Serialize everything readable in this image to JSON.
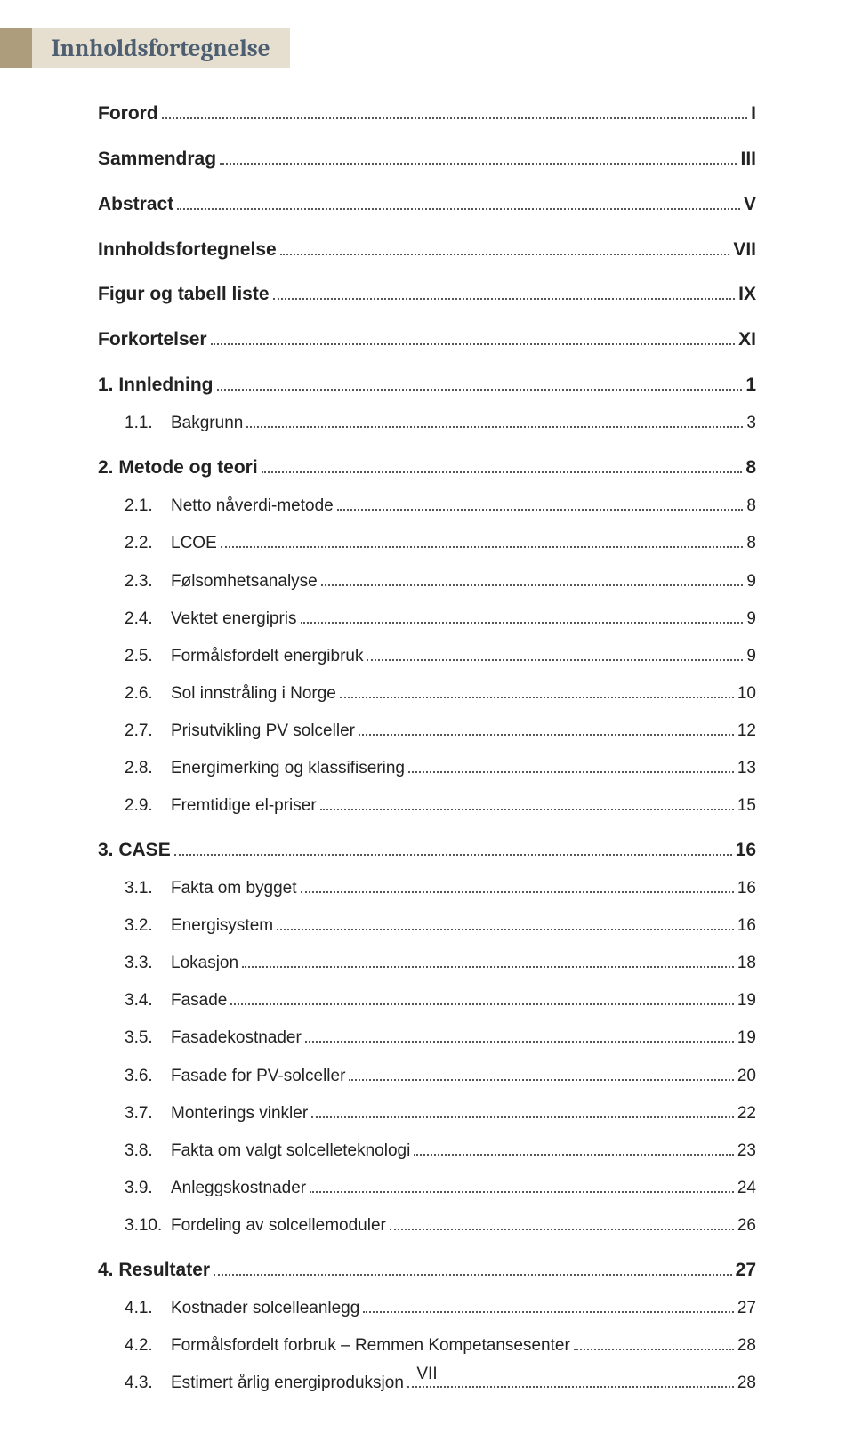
{
  "header": {
    "title": "Innholdsfortegnelse"
  },
  "footer": {
    "page": "VII"
  },
  "toc": [
    {
      "level": 0,
      "num": "",
      "title": "Forord",
      "page": "I"
    },
    {
      "level": 0,
      "num": "",
      "title": "Sammendrag",
      "page": "III"
    },
    {
      "level": 0,
      "num": "",
      "title": "Abstract",
      "page": "V"
    },
    {
      "level": 0,
      "num": "",
      "title": "Innholdsfortegnelse",
      "page": "VII"
    },
    {
      "level": 0,
      "num": "",
      "title": "Figur og tabell liste",
      "page": "IX"
    },
    {
      "level": 0,
      "num": "",
      "title": "Forkortelser",
      "page": "XI"
    },
    {
      "level": 0,
      "num": "1.",
      "title": "Innledning",
      "page": "1"
    },
    {
      "level": 1,
      "num": "1.1.",
      "title": "Bakgrunn",
      "page": "3"
    },
    {
      "level": 0,
      "num": "2.",
      "title": "Metode og teori",
      "page": "8"
    },
    {
      "level": 1,
      "num": "2.1.",
      "title": "Netto nåverdi-metode",
      "page": "8"
    },
    {
      "level": 1,
      "num": "2.2.",
      "title": "LCOE",
      "page": "8"
    },
    {
      "level": 1,
      "num": "2.3.",
      "title": "Følsomhetsanalyse",
      "page": "9"
    },
    {
      "level": 1,
      "num": "2.4.",
      "title": "Vektet energipris",
      "page": "9"
    },
    {
      "level": 1,
      "num": "2.5.",
      "title": "Formålsfordelt energibruk",
      "page": "9"
    },
    {
      "level": 1,
      "num": "2.6.",
      "title": "Sol innstråling i Norge",
      "page": "10"
    },
    {
      "level": 1,
      "num": "2.7.",
      "title": "Prisutvikling PV solceller",
      "page": "12"
    },
    {
      "level": 1,
      "num": "2.8.",
      "title": "Energimerking og klassifisering",
      "page": "13"
    },
    {
      "level": 1,
      "num": "2.9.",
      "title": "Fremtidige el-priser",
      "page": "15"
    },
    {
      "level": 0,
      "num": "3.",
      "title": "CASE",
      "page": "16"
    },
    {
      "level": 1,
      "num": "3.1.",
      "title": "Fakta om bygget",
      "page": "16"
    },
    {
      "level": 1,
      "num": "3.2.",
      "title": "Energisystem",
      "page": "16"
    },
    {
      "level": 1,
      "num": "3.3.",
      "title": "Lokasjon",
      "page": "18"
    },
    {
      "level": 1,
      "num": "3.4.",
      "title": "Fasade",
      "page": "19"
    },
    {
      "level": 1,
      "num": "3.5.",
      "title": "Fasadekostnader",
      "page": "19"
    },
    {
      "level": 1,
      "num": "3.6.",
      "title": "Fasade for PV-solceller",
      "page": "20"
    },
    {
      "level": 1,
      "num": "3.7.",
      "title": "Monterings vinkler",
      "page": "22"
    },
    {
      "level": 1,
      "num": "3.8.",
      "title": "Fakta om valgt solcelleteknologi",
      "page": "23"
    },
    {
      "level": 1,
      "num": "3.9.",
      "title": "Anleggskostnader",
      "page": "24"
    },
    {
      "level": 1,
      "num": "3.10.",
      "title": "Fordeling av solcellemoduler",
      "page": "26"
    },
    {
      "level": 0,
      "num": "4.",
      "title": "Resultater",
      "page": "27"
    },
    {
      "level": 1,
      "num": "4.1.",
      "title": "Kostnader solcelleanlegg",
      "page": "27"
    },
    {
      "level": 1,
      "num": "4.2.",
      "title": "Formålsfordelt forbruk – Remmen Kompetansesenter",
      "page": "28"
    },
    {
      "level": 1,
      "num": "4.3.",
      "title": "Estimert årlig energiproduksjon",
      "page": "28"
    }
  ]
}
